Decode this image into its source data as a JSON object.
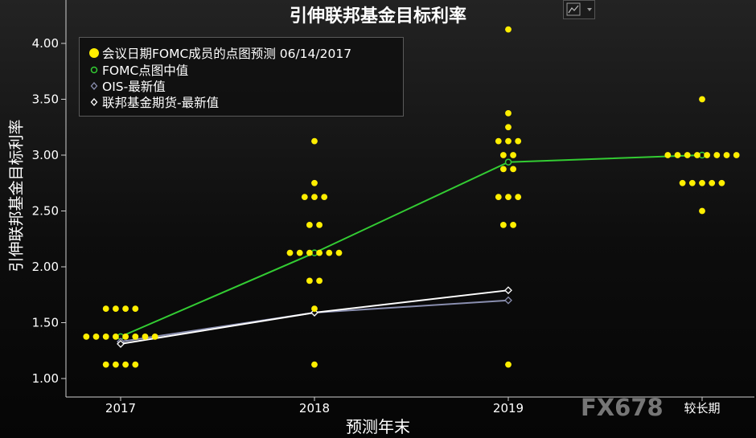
{
  "chart_data": {
    "type": "scatter",
    "title": "引伸联邦基金目标利率",
    "xlabel": "预测年末",
    "ylabel": "引伸联邦基金目标利率",
    "categories": [
      "2017",
      "2018",
      "2019",
      "较长期"
    ],
    "ylim": [
      0.9,
      4.3
    ],
    "yticks": [
      1.0,
      1.5,
      2.0,
      2.5,
      3.0,
      3.5,
      4.0
    ],
    "ytick_labels": [
      "1.00",
      "1.50",
      "2.00",
      "2.50",
      "3.00",
      "3.50",
      "4.00"
    ],
    "legend_placement": "top-left",
    "grid": false,
    "dot_plot": {
      "name": "会议日期FOMC成员的点图预测 06/14/2017",
      "color": "#ffee00",
      "columns": [
        {
          "category": "2017",
          "points": [
            {
              "y": 1.625,
              "count": 4
            },
            {
              "y": 1.375,
              "count": 8
            },
            {
              "y": 1.125,
              "count": 4
            }
          ]
        },
        {
          "category": "2018",
          "points": [
            {
              "y": 3.125,
              "count": 1
            },
            {
              "y": 2.75,
              "count": 1
            },
            {
              "y": 2.625,
              "count": 3
            },
            {
              "y": 2.375,
              "count": 2
            },
            {
              "y": 2.125,
              "count": 6
            },
            {
              "y": 1.875,
              "count": 2
            },
            {
              "y": 1.625,
              "count": 1
            },
            {
              "y": 1.125,
              "count": 1
            }
          ]
        },
        {
          "category": "2019",
          "points": [
            {
              "y": 4.125,
              "count": 1
            },
            {
              "y": 3.375,
              "count": 1
            },
            {
              "y": 3.25,
              "count": 1
            },
            {
              "y": 3.125,
              "count": 3
            },
            {
              "y": 3.0,
              "count": 2
            },
            {
              "y": 2.875,
              "count": 2
            },
            {
              "y": 2.625,
              "count": 3
            },
            {
              "y": 2.375,
              "count": 2
            },
            {
              "y": 1.125,
              "count": 1
            }
          ]
        },
        {
          "category": "较长期",
          "points": [
            {
              "y": 3.5,
              "count": 1
            },
            {
              "y": 3.0,
              "count": 8
            },
            {
              "y": 2.75,
              "count": 5
            },
            {
              "y": 2.5,
              "count": 1
            }
          ]
        }
      ]
    },
    "series": [
      {
        "name": "FOMC点图中值",
        "color": "#33cc33",
        "marker": "circle",
        "values": [
          1.375,
          2.125,
          2.9375,
          3.0
        ]
      },
      {
        "name": "OIS-最新值",
        "color": "#8a8fb0",
        "marker": "diamond",
        "values": [
          1.33,
          1.59,
          1.7
        ]
      },
      {
        "name": "联邦基金期货-最新值",
        "color": "#ffffff",
        "marker": "diamond",
        "values": [
          1.31,
          1.59,
          1.79
        ]
      }
    ]
  },
  "watermark": "FX678"
}
